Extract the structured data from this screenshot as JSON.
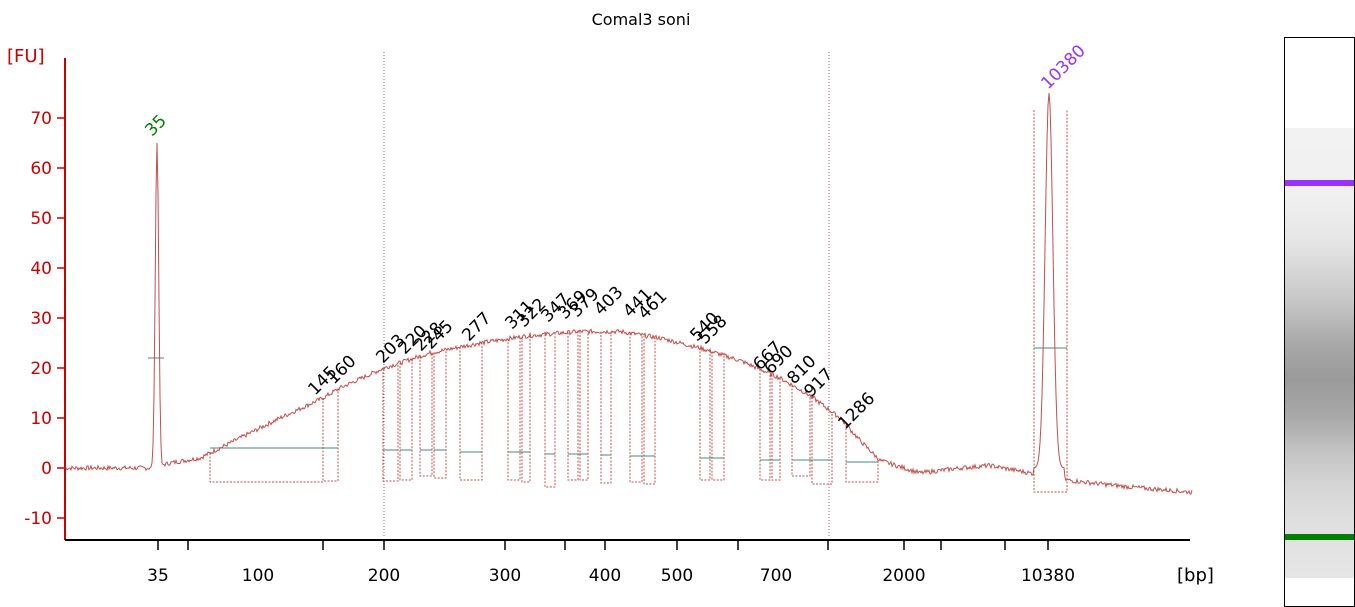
{
  "chart_data": {
    "type": "line",
    "title": "Comal3 soni",
    "ylabel": "[FU]",
    "xlabel": "[bp]",
    "ylim": [
      -12,
      80
    ],
    "yticks": [
      "-10",
      "0",
      "10",
      "20",
      "30",
      "40",
      "50",
      "60",
      "70"
    ],
    "xticks": [
      "35",
      "100",
      "200",
      "300",
      "400",
      "500",
      "700",
      "2000",
      "10380"
    ],
    "colors": {
      "axis": "#cc0000",
      "trace": "#c0504d",
      "marker": "#008000",
      "upper_marker": "#9933ff",
      "baseline": "#4a8a80",
      "label": "#000000"
    },
    "marker_peak": {
      "label": "35",
      "value": 65
    },
    "upper_marker_peak": {
      "label": "10380",
      "value": 75
    },
    "peaks": [
      {
        "label": "145",
        "value": 15
      },
      {
        "label": "160",
        "value": 16
      },
      {
        "label": "203",
        "value": 19
      },
      {
        "label": "220",
        "value": 20
      },
      {
        "label": "228",
        "value": 21
      },
      {
        "label": "245",
        "value": 22
      },
      {
        "label": "277",
        "value": 23
      },
      {
        "label": "311",
        "value": 25
      },
      {
        "label": "322",
        "value": 26
      },
      {
        "label": "347",
        "value": 27
      },
      {
        "label": "369",
        "value": 27
      },
      {
        "label": "379",
        "value": 28
      },
      {
        "label": "403",
        "value": 28
      },
      {
        "label": "441",
        "value": 28
      },
      {
        "label": "461",
        "value": 27
      },
      {
        "label": "540",
        "value": 24
      },
      {
        "label": "558",
        "value": 23
      },
      {
        "label": "667",
        "value": 19
      },
      {
        "label": "690",
        "value": 18
      },
      {
        "label": "810",
        "value": 15
      },
      {
        "label": "917",
        "value": 13
      },
      {
        "label": "1286",
        "value": 8
      }
    ]
  }
}
